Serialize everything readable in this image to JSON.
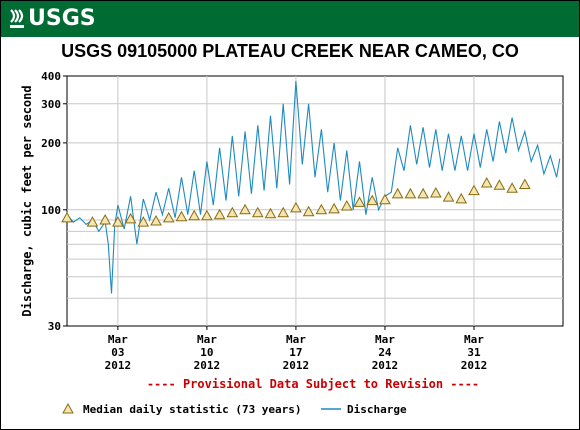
{
  "header": {
    "logo_text": "USGS"
  },
  "chart_data": {
    "type": "line",
    "title": "USGS 09105000 PLATEAU CREEK NEAR CAMEO, CO",
    "ylabel": "Discharge, cubic feet per second",
    "yscale": "log",
    "ylim": [
      30,
      400
    ],
    "y_ticks": [
      30,
      100,
      200,
      300,
      400
    ],
    "x_start": "2012-02-28",
    "x_end": "2012-04-07",
    "x_ticks": [
      {
        "date": "2012-03-03",
        "line1": "Mar",
        "line2": "03",
        "line3": "2012"
      },
      {
        "date": "2012-03-10",
        "line1": "Mar",
        "line2": "10",
        "line3": "2012"
      },
      {
        "date": "2012-03-17",
        "line1": "Mar",
        "line2": "17",
        "line3": "2012"
      },
      {
        "date": "2012-03-24",
        "line1": "Mar",
        "line2": "24",
        "line3": "2012"
      },
      {
        "date": "2012-03-31",
        "line1": "Mar",
        "line2": "31",
        "line3": "2012"
      }
    ],
    "grid": true,
    "annotation": "---- Provisional Data Subject to Revision ----",
    "series": [
      {
        "name": "Discharge",
        "color": "#1f8ac0",
        "style": "line",
        "points": [
          [
            "2012-02-28T00:00",
            95
          ],
          [
            "2012-02-28T12:00",
            88
          ],
          [
            "2012-02-29T00:00",
            92
          ],
          [
            "2012-02-29T12:00",
            86
          ],
          [
            "2012-03-01T00:00",
            90
          ],
          [
            "2012-03-01T12:00",
            80
          ],
          [
            "2012-03-02T00:00",
            88
          ],
          [
            "2012-03-02T06:00",
            70
          ],
          [
            "2012-03-02T12:00",
            42
          ],
          [
            "2012-03-02T18:00",
            85
          ],
          [
            "2012-03-03T00:00",
            105
          ],
          [
            "2012-03-03T12:00",
            82
          ],
          [
            "2012-03-04T00:00",
            115
          ],
          [
            "2012-03-04T12:00",
            70
          ],
          [
            "2012-03-05T00:00",
            112
          ],
          [
            "2012-03-05T12:00",
            90
          ],
          [
            "2012-03-06T00:00",
            120
          ],
          [
            "2012-03-06T12:00",
            95
          ],
          [
            "2012-03-07T00:00",
            125
          ],
          [
            "2012-03-07T12:00",
            92
          ],
          [
            "2012-03-08T00:00",
            140
          ],
          [
            "2012-03-08T12:00",
            95
          ],
          [
            "2012-03-09T00:00",
            150
          ],
          [
            "2012-03-09T12:00",
            95
          ],
          [
            "2012-03-10T00:00",
            165
          ],
          [
            "2012-03-10T12:00",
            105
          ],
          [
            "2012-03-11T00:00",
            190
          ],
          [
            "2012-03-11T12:00",
            110
          ],
          [
            "2012-03-12T00:00",
            215
          ],
          [
            "2012-03-12T12:00",
            115
          ],
          [
            "2012-03-13T00:00",
            225
          ],
          [
            "2012-03-13T12:00",
            118
          ],
          [
            "2012-03-14T00:00",
            240
          ],
          [
            "2012-03-14T12:00",
            122
          ],
          [
            "2012-03-15T00:00",
            265
          ],
          [
            "2012-03-15T12:00",
            125
          ],
          [
            "2012-03-16T00:00",
            300
          ],
          [
            "2012-03-16T12:00",
            130
          ],
          [
            "2012-03-17T00:00",
            380
          ],
          [
            "2012-03-17T12:00",
            160
          ],
          [
            "2012-03-18T00:00",
            300
          ],
          [
            "2012-03-18T12:00",
            140
          ],
          [
            "2012-03-19T00:00",
            230
          ],
          [
            "2012-03-19T12:00",
            120
          ],
          [
            "2012-03-20T00:00",
            200
          ],
          [
            "2012-03-20T12:00",
            110
          ],
          [
            "2012-03-21T00:00",
            185
          ],
          [
            "2012-03-21T12:00",
            100
          ],
          [
            "2012-03-22T00:00",
            165
          ],
          [
            "2012-03-22T12:00",
            95
          ],
          [
            "2012-03-23T00:00",
            140
          ],
          [
            "2012-03-23T12:00",
            100
          ],
          [
            "2012-03-24T00:00",
            115
          ],
          [
            "2012-03-24T12:00",
            120
          ],
          [
            "2012-03-25T00:00",
            190
          ],
          [
            "2012-03-25T12:00",
            150
          ],
          [
            "2012-03-26T00:00",
            240
          ],
          [
            "2012-03-26T12:00",
            160
          ],
          [
            "2012-03-27T00:00",
            235
          ],
          [
            "2012-03-27T12:00",
            155
          ],
          [
            "2012-03-28T00:00",
            230
          ],
          [
            "2012-03-28T12:00",
            150
          ],
          [
            "2012-03-29T00:00",
            220
          ],
          [
            "2012-03-29T12:00",
            150
          ],
          [
            "2012-03-30T00:00",
            215
          ],
          [
            "2012-03-30T12:00",
            150
          ],
          [
            "2012-03-31T00:00",
            220
          ],
          [
            "2012-03-31T12:00",
            155
          ],
          [
            "2012-04-01T00:00",
            230
          ],
          [
            "2012-04-01T12:00",
            165
          ],
          [
            "2012-04-02T00:00",
            250
          ],
          [
            "2012-04-02T12:00",
            180
          ],
          [
            "2012-04-03T00:00",
            260
          ],
          [
            "2012-04-03T12:00",
            185
          ],
          [
            "2012-04-04T00:00",
            225
          ],
          [
            "2012-04-04T12:00",
            165
          ],
          [
            "2012-04-05T00:00",
            195
          ],
          [
            "2012-04-05T12:00",
            145
          ],
          [
            "2012-04-06T00:00",
            175
          ],
          [
            "2012-04-06T12:00",
            140
          ],
          [
            "2012-04-06T18:00",
            170
          ]
        ]
      },
      {
        "name": "Median daily statistic (73 years)",
        "color": "#c8a000",
        "style": "triangle",
        "points": [
          [
            "2012-02-28",
            92
          ],
          [
            "2012-03-01",
            88
          ],
          [
            "2012-03-02",
            90
          ],
          [
            "2012-03-03",
            88
          ],
          [
            "2012-03-04",
            91
          ],
          [
            "2012-03-05",
            88
          ],
          [
            "2012-03-06",
            89
          ],
          [
            "2012-03-07",
            92
          ],
          [
            "2012-03-08",
            93
          ],
          [
            "2012-03-09",
            94
          ],
          [
            "2012-03-10",
            94
          ],
          [
            "2012-03-11",
            95
          ],
          [
            "2012-03-12",
            97
          ],
          [
            "2012-03-13",
            100
          ],
          [
            "2012-03-14",
            97
          ],
          [
            "2012-03-15",
            96
          ],
          [
            "2012-03-16",
            97
          ],
          [
            "2012-03-17",
            102
          ],
          [
            "2012-03-18",
            98
          ],
          [
            "2012-03-19",
            100
          ],
          [
            "2012-03-20",
            101
          ],
          [
            "2012-03-21",
            104
          ],
          [
            "2012-03-22",
            108
          ],
          [
            "2012-03-23",
            110
          ],
          [
            "2012-03-24",
            111
          ],
          [
            "2012-03-25",
            118
          ],
          [
            "2012-03-26",
            118
          ],
          [
            "2012-03-27",
            118
          ],
          [
            "2012-03-28",
            119
          ],
          [
            "2012-03-29",
            114
          ],
          [
            "2012-03-30",
            112
          ],
          [
            "2012-03-31",
            122
          ],
          [
            "2012-04-01",
            132
          ],
          [
            "2012-04-02",
            129
          ],
          [
            "2012-04-03",
            125
          ],
          [
            "2012-04-04",
            130
          ]
        ]
      }
    ],
    "legend": [
      {
        "label": "Median daily statistic (73 years)",
        "marker": "triangle",
        "color": "#c8a000"
      },
      {
        "label": "Discharge",
        "marker": "line",
        "color": "#1f8ac0"
      }
    ]
  }
}
